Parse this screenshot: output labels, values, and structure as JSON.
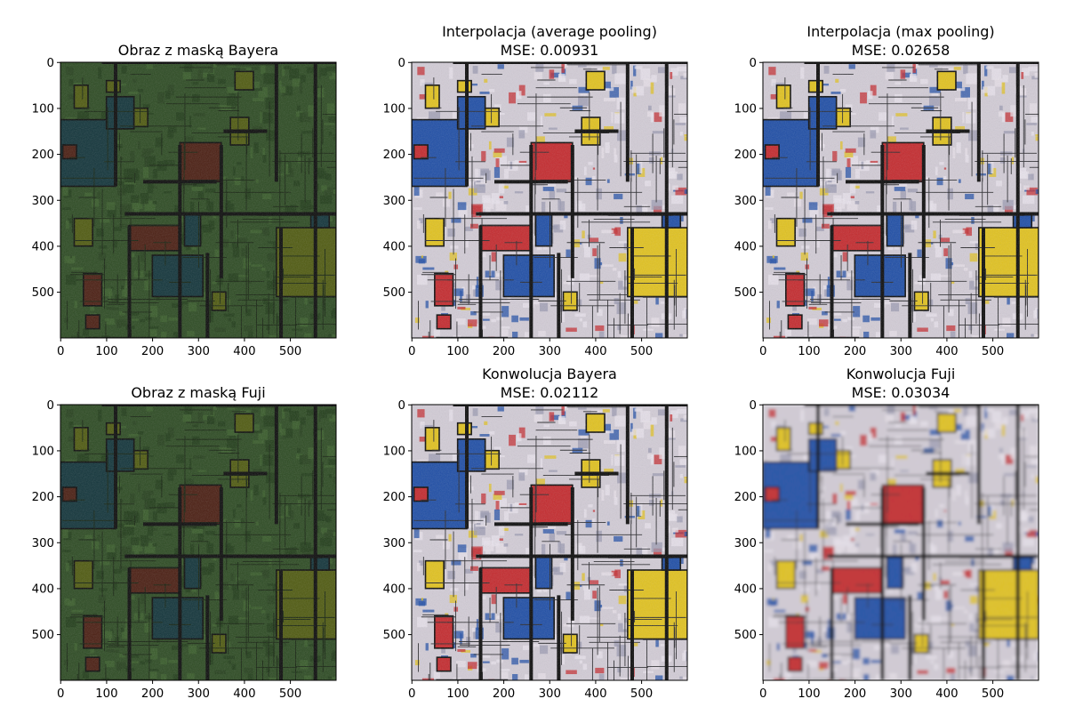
{
  "figure": {
    "panels": [
      {
        "title_lines": [
          "Obraz z maską Bayera"
        ],
        "palette": "bayer",
        "xticks": [
          "0",
          "100",
          "200",
          "300",
          "400",
          "500"
        ],
        "yticks": [
          "0",
          "100",
          "200",
          "300",
          "400",
          "500"
        ]
      },
      {
        "title_lines": [
          "Interpolacja (average pooling)",
          "MSE: 0.00931"
        ],
        "palette": "color",
        "xticks": [
          "0",
          "100",
          "200",
          "300",
          "400",
          "500"
        ],
        "yticks": [
          "0",
          "100",
          "200",
          "300",
          "400",
          "500"
        ]
      },
      {
        "title_lines": [
          "Interpolacja (max pooling)",
          "MSE: 0.02658"
        ],
        "palette": "color",
        "xticks": [
          "0",
          "100",
          "200",
          "300",
          "400",
          "500"
        ],
        "yticks": [
          "0",
          "100",
          "200",
          "300",
          "400",
          "500"
        ]
      },
      {
        "title_lines": [
          "Obraz z maską Fuji"
        ],
        "palette": "bayer",
        "xticks": [
          "0",
          "100",
          "200",
          "300",
          "400",
          "500"
        ],
        "yticks": [
          "0",
          "100",
          "200",
          "300",
          "400",
          "500"
        ]
      },
      {
        "title_lines": [
          "Konwolucja Bayera",
          "MSE: 0.02112"
        ],
        "palette": "color",
        "xticks": [
          "0",
          "100",
          "200",
          "300",
          "400",
          "500"
        ],
        "yticks": [
          "0",
          "100",
          "200",
          "300",
          "400",
          "500"
        ]
      },
      {
        "title_lines": [
          "Konwolucja Fuji",
          "MSE: 0.03034"
        ],
        "palette": "color-blur",
        "xticks": [
          "0",
          "100",
          "200",
          "300",
          "400",
          "500"
        ],
        "yticks": [
          "0",
          "100",
          "200",
          "300",
          "400",
          "500"
        ]
      }
    ],
    "colors": {
      "mask_base": "#2c4a22",
      "mask_blue": "#12343a",
      "mask_red": "#4a1e12",
      "mask_yellow": "#4f5a10",
      "img_base": "#d2ccd6",
      "img_blue": "#1f4ea6",
      "img_red": "#c42a2e",
      "img_yellow": "#e1c21f",
      "lines": "#0b0b0b"
    }
  }
}
